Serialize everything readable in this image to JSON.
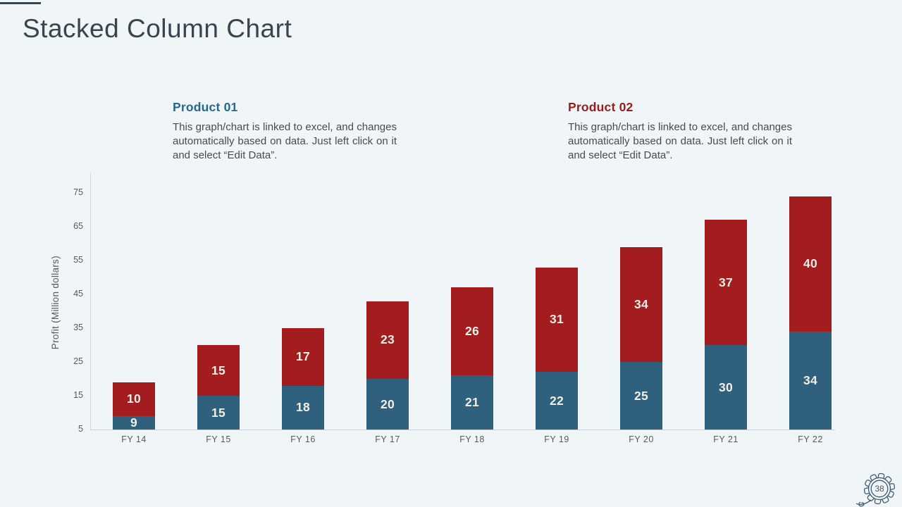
{
  "slide": {
    "title": "Stacked Column Chart",
    "page_number": "38"
  },
  "callouts": [
    {
      "heading": "Product 01",
      "heading_color": "#26678e",
      "description": "This graph/chart is linked to excel, and changes automatically based on data. Just left click on it and select “Edit Data”."
    },
    {
      "heading": "Product 02",
      "heading_color": "#9c1a1a",
      "description": "This graph/chart is linked to excel, and changes automatically based on data. Just left click on it and select “Edit Data”."
    }
  ],
  "chart_data": {
    "type": "bar",
    "stacked": true,
    "categories": [
      "FY 14",
      "FY 15",
      "FY 16",
      "FY 17",
      "FY 18",
      "FY 19",
      "FY 20",
      "FY 21",
      "FY 22"
    ],
    "series": [
      {
        "name": "Product 01",
        "color": "#2f617f",
        "values": [
          9,
          15,
          18,
          20,
          21,
          22,
          25,
          30,
          34
        ]
      },
      {
        "name": "Product 02",
        "color": "#a31c1e",
        "values": [
          10,
          15,
          17,
          23,
          26,
          31,
          34,
          37,
          40
        ]
      }
    ],
    "title": "Stacked Column Chart",
    "xlabel": "",
    "ylabel": "Profit  (Million dollars)",
    "yticks": [
      5,
      15,
      25,
      35,
      45,
      55,
      65,
      75
    ],
    "ylim": [
      5,
      80
    ],
    "grid": false,
    "legend": "none",
    "value_labels": true
  },
  "colors": {
    "background": "#f0f5f8",
    "title": "#39444e",
    "accent_line": "#2e4b5e",
    "axis_text": "#595959",
    "icon_outline": "#3f5970",
    "bar_label": "#f2efe8"
  }
}
